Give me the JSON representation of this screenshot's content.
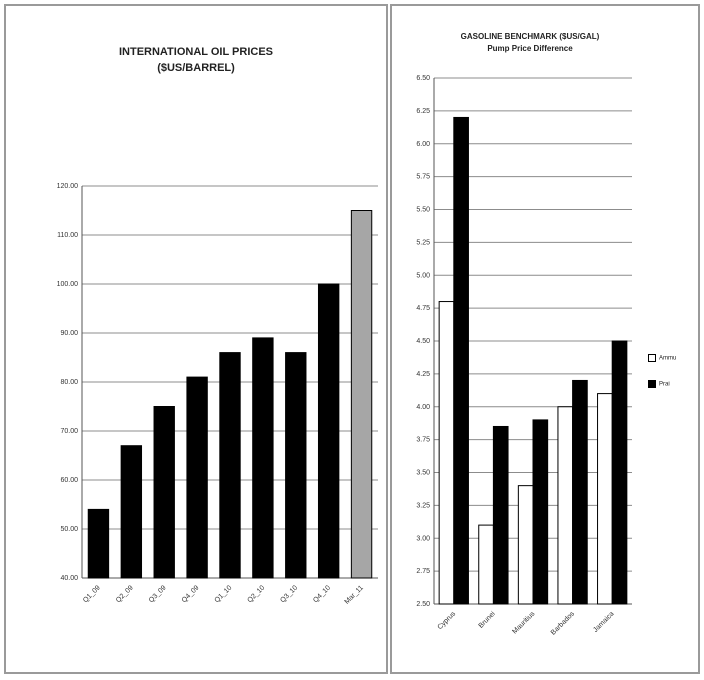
{
  "chart_data": [
    {
      "type": "bar",
      "title": "INTERNATIONAL OIL PRICES",
      "subtitle": "($US/BARREL)",
      "categories": [
        "Q1_09",
        "Q2_09",
        "Q3_09",
        "Q4_09",
        "Q1_10",
        "Q2_10",
        "Q3_10",
        "Q4_10",
        "Mar_11"
      ],
      "values": [
        54,
        67,
        75,
        81,
        86,
        89,
        86,
        100,
        115
      ],
      "colors": [
        "#000000",
        "#000000",
        "#000000",
        "#000000",
        "#000000",
        "#000000",
        "#000000",
        "#000000",
        "#a6a6a6"
      ],
      "ylim": [
        40,
        120
      ],
      "yticks": [
        "40.00",
        "50.00",
        "60.00",
        "70.00",
        "80.00",
        "90.00",
        "100.00",
        "110.00",
        "120.00"
      ],
      "grid": true
    },
    {
      "type": "bar",
      "title": "GASOLINE BENCHMARK ($US/GAL)",
      "subtitle": "Pump Price Difference",
      "categories": [
        "Cyprus",
        "Brunei",
        "Mauritius",
        "Barbados",
        "Jamaica"
      ],
      "series": [
        {
          "name": "Ammu",
          "color": "#ffffff",
          "values": [
            4.8,
            3.1,
            3.4,
            4.0,
            4.1
          ]
        },
        {
          "name": "Prai",
          "color": "#000000",
          "values": [
            6.2,
            3.85,
            3.9,
            4.2,
            4.5
          ]
        }
      ],
      "ylim": [
        2.5,
        6.5
      ],
      "yticks": [
        "2.50",
        "2.75",
        "3.00",
        "3.25",
        "3.50",
        "3.75",
        "4.00",
        "4.25",
        "4.50",
        "4.75",
        "5.00",
        "5.25",
        "5.50",
        "5.75",
        "6.00",
        "6.25",
        "6.50"
      ],
      "legend": "right",
      "grid": true
    }
  ]
}
